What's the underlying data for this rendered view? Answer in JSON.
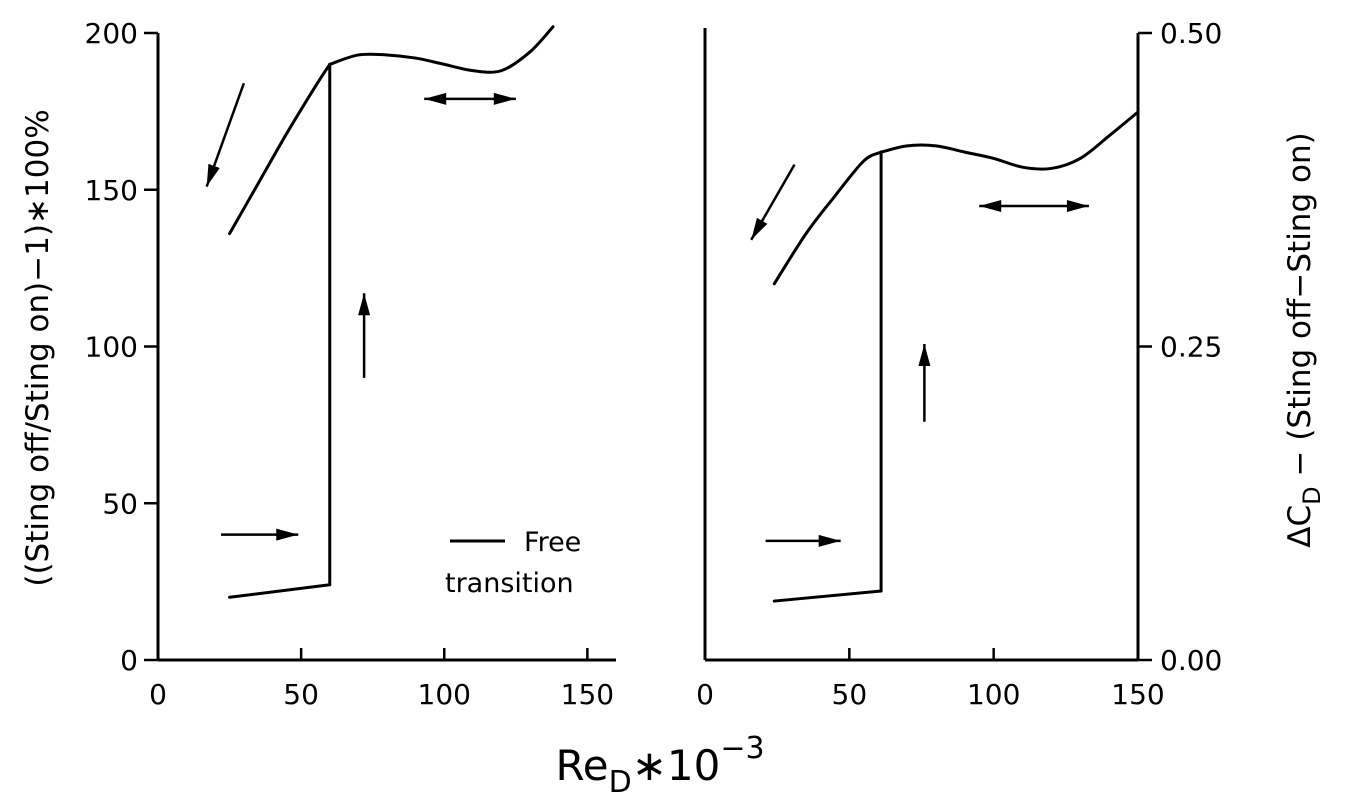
{
  "chart_data": [
    {
      "type": "line",
      "panel": "left",
      "title": "",
      "xlabel": "",
      "ylabel": "((Sting off/Sting on)−1)∗100%",
      "xlim": [
        0,
        160
      ],
      "ylim": [
        0,
        200
      ],
      "x_ticks": [
        0,
        50,
        100,
        150
      ],
      "y_ticks": [
        0,
        50,
        100,
        150,
        200
      ],
      "series": [
        {
          "name": "Free transition",
          "segments": [
            {
              "x": [
                25,
                35,
                45,
                55,
                60
              ],
              "y": [
                136,
                152,
                168,
                183,
                190
              ]
            },
            {
              "x": [
                60,
                60
              ],
              "y": [
                190,
                24
              ]
            },
            {
              "x": [
                25,
                60
              ],
              "y": [
                20,
                24
              ]
            },
            {
              "x": [
                60,
                70,
                80,
                90,
                100,
                110,
                120,
                130,
                138
              ],
              "y": [
                190,
                193,
                193,
                192,
                190,
                188,
                188,
                194,
                202
              ]
            }
          ]
        }
      ],
      "annotations": [
        {
          "type": "arrow",
          "from": [
            30,
            184
          ],
          "to": [
            17,
            151
          ],
          "heads": "end"
        },
        {
          "type": "arrow",
          "from": [
            93,
            179
          ],
          "to": [
            125,
            179
          ],
          "heads": "both"
        },
        {
          "type": "arrow",
          "from": [
            72,
            90
          ],
          "to": [
            72,
            117
          ],
          "heads": "end"
        },
        {
          "type": "arrow",
          "from": [
            22,
            40
          ],
          "to": [
            49,
            40
          ],
          "heads": "end"
        }
      ]
    },
    {
      "type": "line",
      "panel": "right",
      "title": "",
      "xlabel": "",
      "ylabel": "ΔC_D − (Sting off−Sting on)",
      "xlim": [
        0,
        150
      ],
      "ylim": [
        0,
        0.5
      ],
      "x_ticks": [
        0,
        50,
        100,
        150
      ],
      "y_ticks": [
        0.0,
        0.25,
        0.5
      ],
      "series": [
        {
          "name": "",
          "segments": [
            {
              "x": [
                24,
                35,
                45,
                55,
                61
              ],
              "y": [
                0.3,
                0.34,
                0.37,
                0.398,
                0.405
              ]
            },
            {
              "x": [
                61,
                61
              ],
              "y": [
                0.405,
                0.055
              ]
            },
            {
              "x": [
                24,
                61
              ],
              "y": [
                0.047,
                0.055
              ]
            },
            {
              "x": [
                61,
                70,
                80,
                90,
                100,
                110,
                120,
                130,
                140,
                150
              ],
              "y": [
                0.405,
                0.41,
                0.41,
                0.405,
                0.4,
                0.393,
                0.392,
                0.4,
                0.418,
                0.437
              ]
            }
          ]
        }
      ],
      "annotations": [
        {
          "type": "arrow",
          "from": [
            31,
            0.395
          ],
          "to": [
            16,
            0.335
          ],
          "heads": "end"
        },
        {
          "type": "arrow",
          "from": [
            95,
            0.362
          ],
          "to": [
            133,
            0.362
          ],
          "heads": "both"
        },
        {
          "type": "arrow",
          "from": [
            76,
            0.19
          ],
          "to": [
            76,
            0.252
          ],
          "heads": "end"
        },
        {
          "type": "arrow",
          "from": [
            21,
            0.095
          ],
          "to": [
            47,
            0.095
          ],
          "heads": "end"
        }
      ]
    }
  ],
  "shared_xlabel_main": "Re",
  "shared_xlabel_sub": "D",
  "shared_xlabel_rest": "∗10",
  "shared_xlabel_sup": "−3",
  "right_ylabel_main": "ΔC",
  "right_ylabel_sub": "D",
  "right_ylabel_rest": " − (Sting off−Sting on)",
  "legend": {
    "line1": "Free",
    "line2": "transition"
  }
}
